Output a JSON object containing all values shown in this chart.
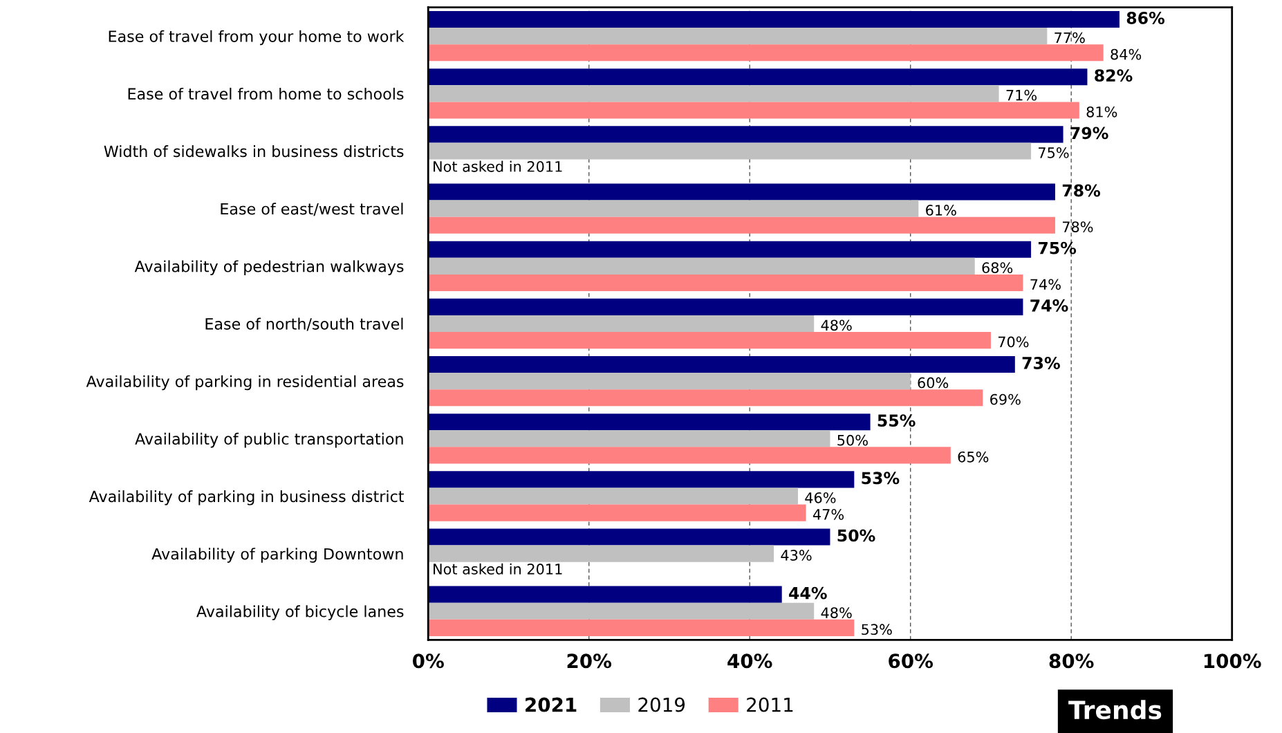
{
  "chart_data": {
    "type": "bar",
    "orientation": "horizontal",
    "categories": [
      "Ease of travel from your home to work",
      "Ease of travel from home to schools",
      "Width of sidewalks in business districts",
      "Ease of east/west travel",
      "Availability of pedestrian walkways",
      "Ease of north/south travel",
      "Availability of parking in residential areas",
      "Availability of public transportation",
      "Availability of parking in business district",
      "Availability of parking Downtown",
      "Availability of bicycle lanes"
    ],
    "series": [
      {
        "name": "2021",
        "color": "#000080",
        "values": [
          86,
          82,
          79,
          78,
          75,
          74,
          73,
          55,
          53,
          50,
          44
        ],
        "value_labels": [
          "86%",
          "82%",
          "79%",
          "78%",
          "75%",
          "74%",
          "73%",
          "55%",
          "53%",
          "50%",
          "44%"
        ]
      },
      {
        "name": "2019",
        "color": "#c0c0c0",
        "values": [
          77,
          71,
          75,
          61,
          68,
          48,
          60,
          50,
          46,
          43,
          48
        ],
        "value_labels": [
          "77%",
          "71%",
          "75%",
          "61%",
          "68%",
          "48%",
          "60%",
          "50%",
          "46%",
          "43%",
          "48%"
        ]
      },
      {
        "name": "2011",
        "color": "#ff8080",
        "values": [
          84,
          81,
          null,
          78,
          74,
          70,
          69,
          65,
          47,
          null,
          53
        ],
        "value_labels": [
          "84%",
          "81%",
          "Not asked in 2011",
          "78%",
          "74%",
          "70%",
          "69%",
          "65%",
          "47%",
          "Not asked in 2011",
          "53%"
        ]
      }
    ],
    "xlim": [
      0,
      100
    ],
    "xticks": [
      {
        "value": 0,
        "label": "0%"
      },
      {
        "value": 20,
        "label": "20%"
      },
      {
        "value": 40,
        "label": "40%"
      },
      {
        "value": 60,
        "label": "60%"
      },
      {
        "value": 80,
        "label": "80%"
      },
      {
        "value": 100,
        "label": "100%"
      }
    ],
    "grid": "x",
    "legend": "bottom",
    "annotations": [
      "Trends"
    ]
  }
}
